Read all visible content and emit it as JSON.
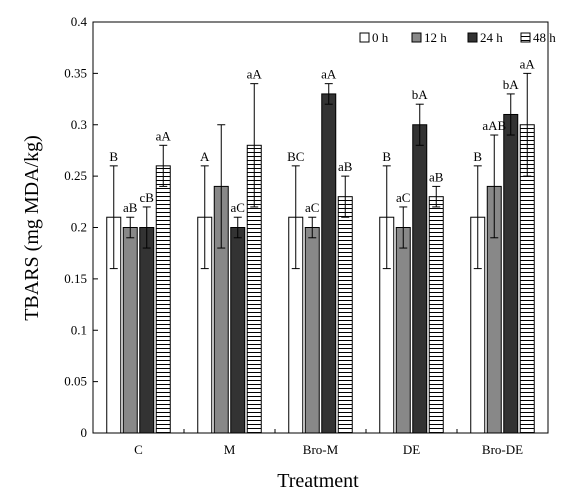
{
  "chart_data": {
    "type": "bar",
    "title": "",
    "xlabel": "Treatment",
    "ylabel": "TBARS (mg MDA/kg)",
    "ylim": [
      0,
      0.4
    ],
    "yticks": [
      "0",
      "0.05",
      "0.1",
      "0.15",
      "0.2",
      "0.25",
      "0.3",
      "0.35",
      "0.4"
    ],
    "categories": [
      "C",
      "M",
      "Bro-M",
      "DE",
      "Bro-DE"
    ],
    "legend_position": "top-right",
    "grid": false,
    "series": [
      {
        "name": "0 h",
        "fill": "#ffffff",
        "pattern": "solid",
        "values": [
          0.21,
          0.21,
          0.21,
          0.21,
          0.21
        ],
        "errors": [
          0.05,
          0.05,
          0.05,
          0.05,
          0.05
        ],
        "labels": [
          "B",
          "A",
          "BC",
          "B",
          "B"
        ]
      },
      {
        "name": "12 h",
        "fill": "#888888",
        "pattern": "solid",
        "values": [
          0.2,
          0.24,
          0.2,
          0.2,
          0.24
        ],
        "errors": [
          0.01,
          0.06,
          0.01,
          0.02,
          0.05
        ],
        "labels": [
          "aB",
          "",
          "aC",
          "aC",
          "aAB"
        ]
      },
      {
        "name": "24 h",
        "fill": "#333333",
        "pattern": "solid",
        "values": [
          0.2,
          0.2,
          0.33,
          0.3,
          0.31
        ],
        "errors": [
          0.02,
          0.01,
          0.01,
          0.02,
          0.02
        ],
        "labels": [
          "cB",
          "aC",
          "aA",
          "bA",
          "bA"
        ]
      },
      {
        "name": "48 h",
        "fill": "#ffffff",
        "pattern": "hstripes",
        "values": [
          0.26,
          0.28,
          0.23,
          0.23,
          0.3
        ],
        "errors": [
          0.02,
          0.06,
          0.02,
          0.01,
          0.05
        ],
        "labels": [
          "aA",
          "aA",
          "aB",
          "aB",
          "aA"
        ]
      }
    ]
  }
}
